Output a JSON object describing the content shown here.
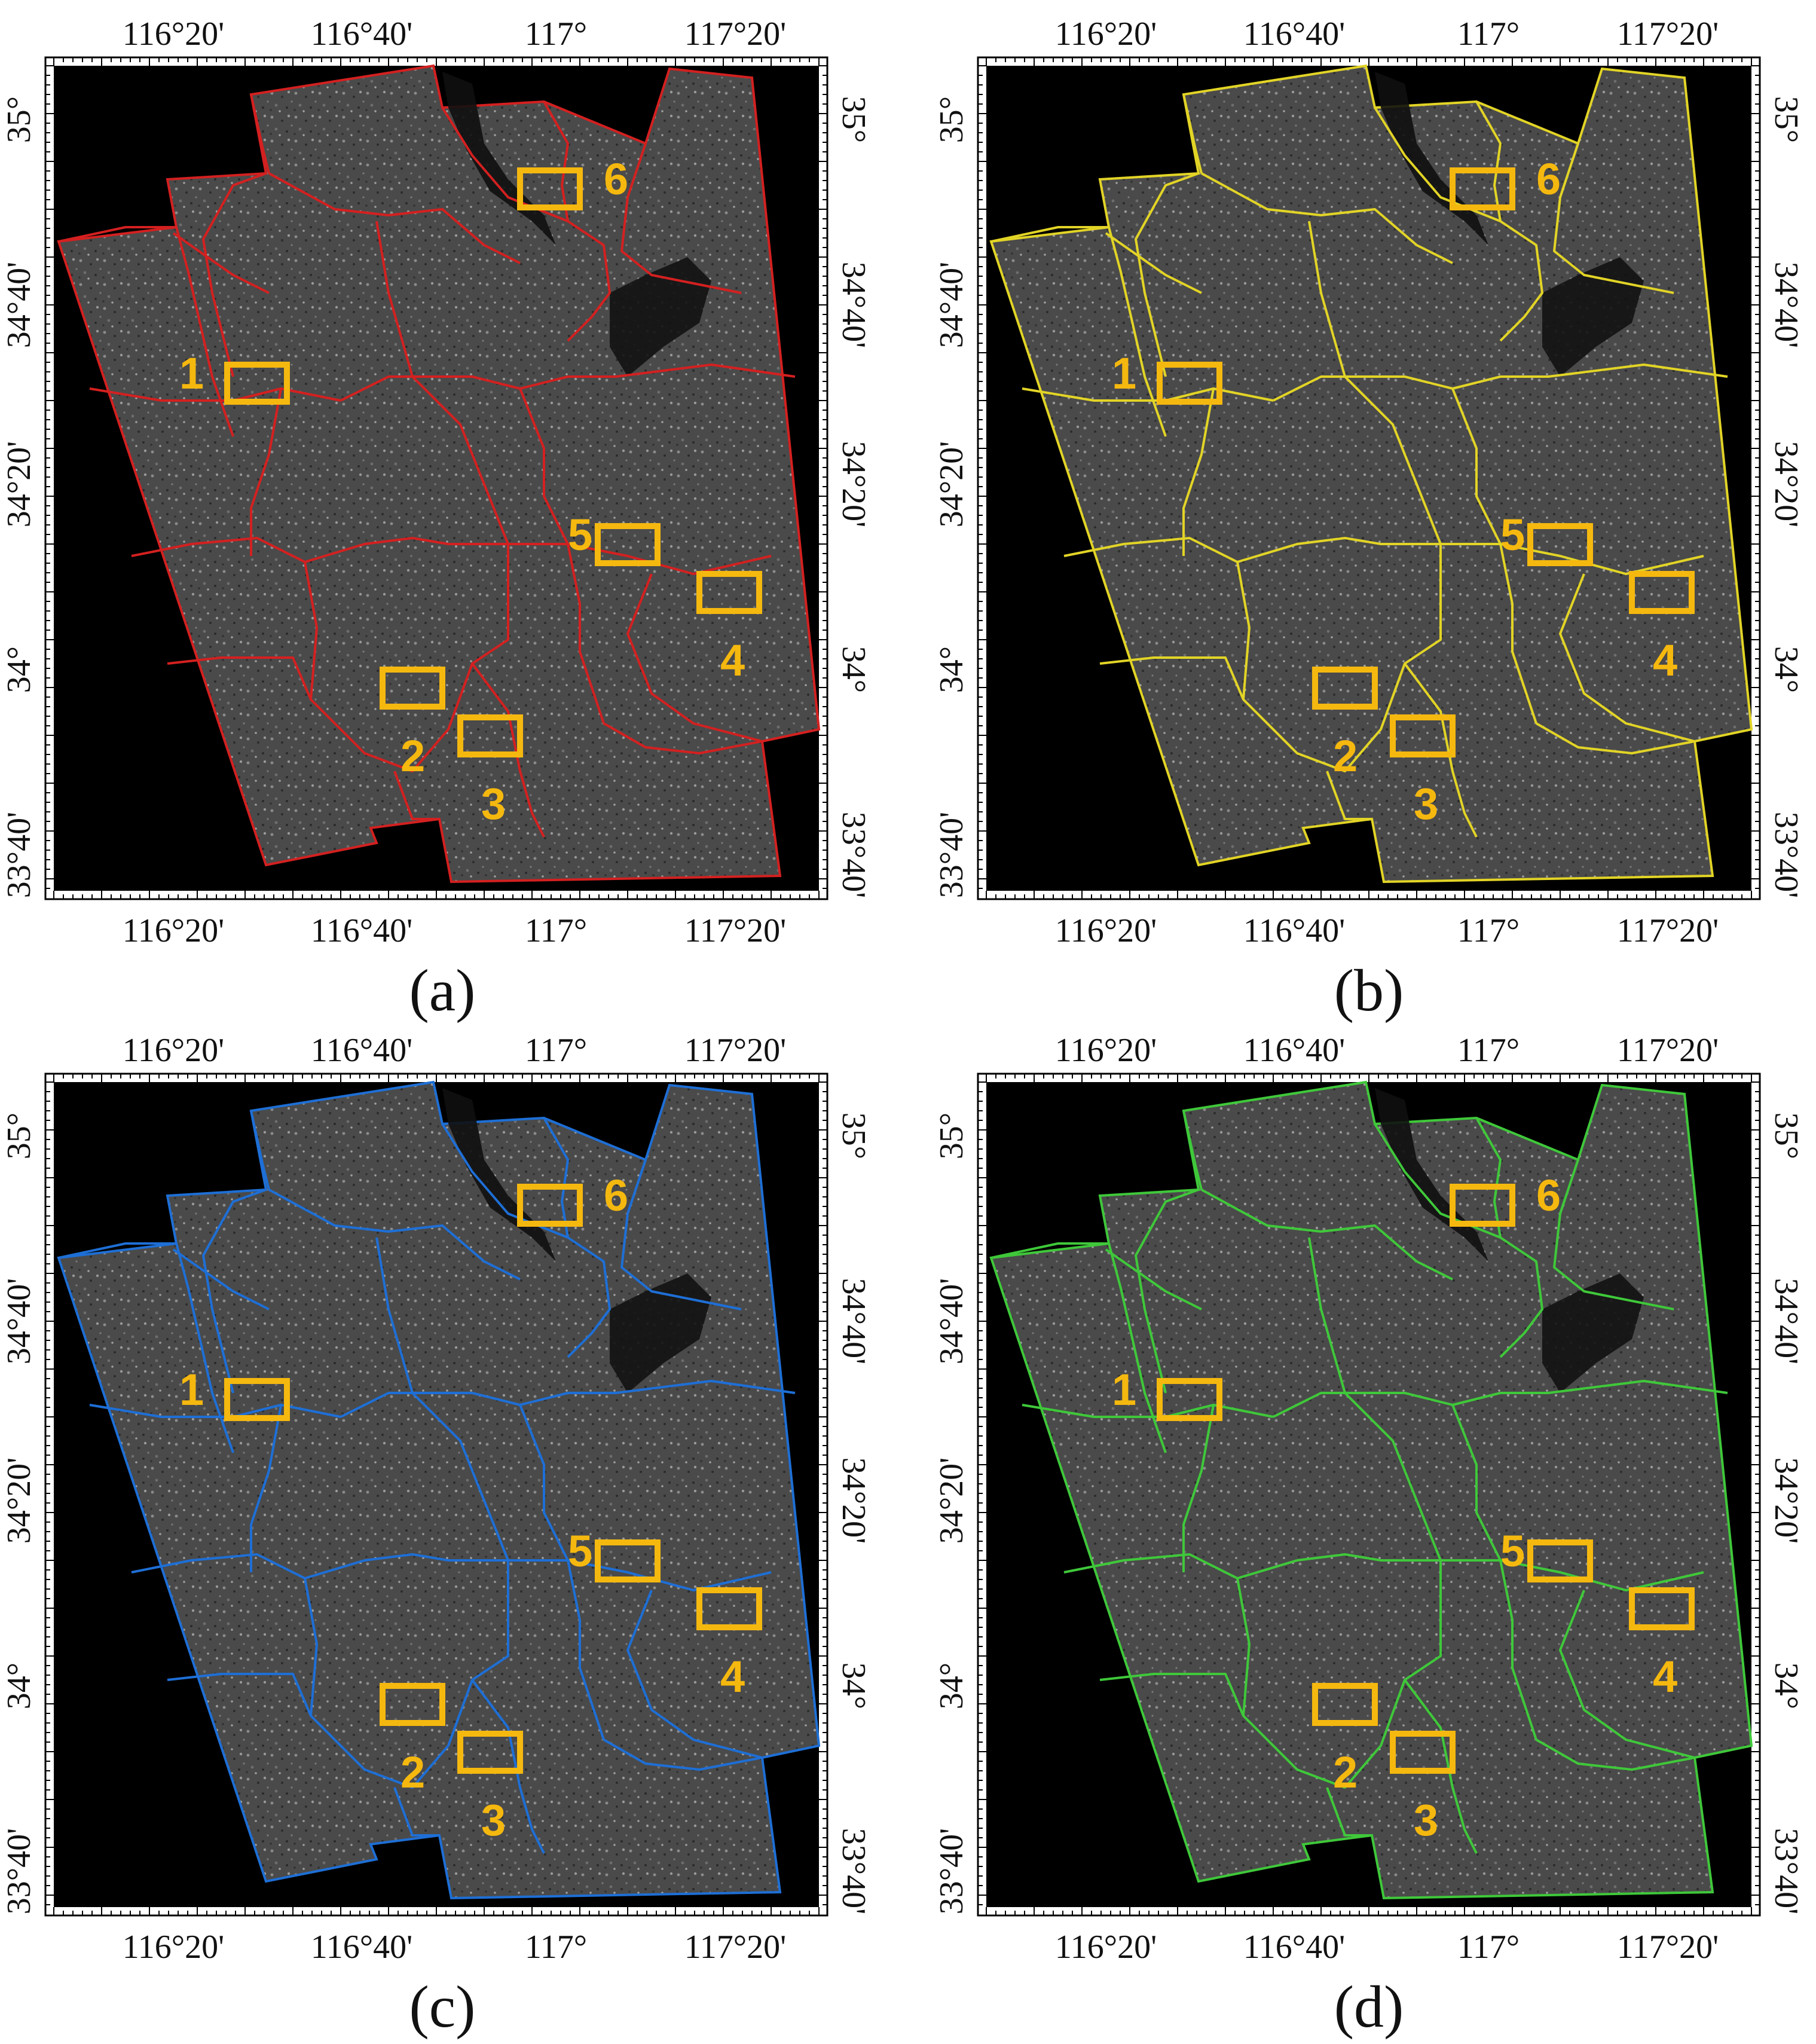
{
  "figure": {
    "accent_colors": {
      "region_box": "#F5B80F",
      "frame": "#000000",
      "background": "#000000"
    },
    "lon_labels": [
      "116°20'",
      "116°40'",
      "117°",
      "117°20'"
    ],
    "lat_labels": [
      "35°",
      "34°40'",
      "34°20'",
      "34°",
      "33°40'"
    ],
    "region_labels": [
      "1",
      "2",
      "3",
      "4",
      "5",
      "6"
    ],
    "panels": [
      {
        "id": "a",
        "caption": "(a)",
        "line_color": "#D42020"
      },
      {
        "id": "b",
        "caption": "(b)",
        "line_color": "#E2D426"
      },
      {
        "id": "c",
        "caption": "(c)",
        "line_color": "#1E6FD6"
      },
      {
        "id": "d",
        "caption": "(d)",
        "line_color": "#3FC83A"
      }
    ]
  }
}
